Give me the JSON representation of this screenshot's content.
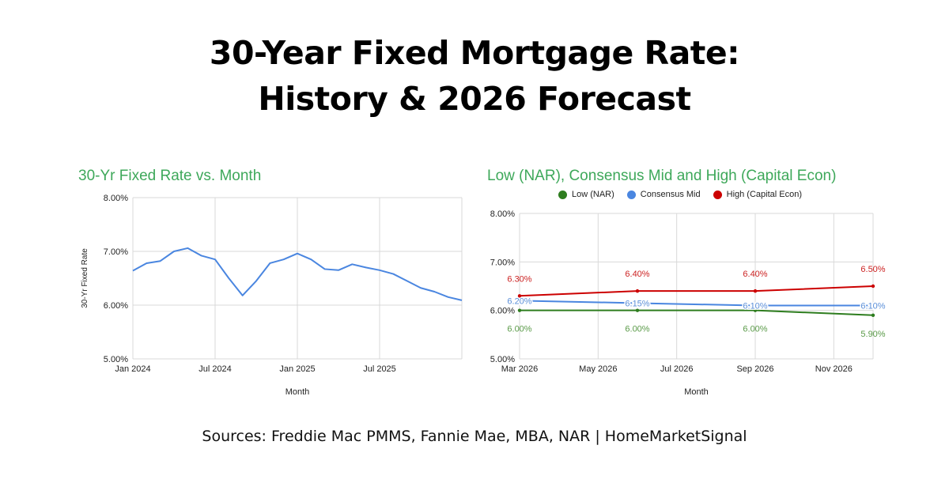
{
  "title_line1": "30-Year Fixed Mortgage Rate:",
  "title_line2": "History & 2026 Forecast",
  "source": "Sources: Freddie Mac PMMS, Fannie Mae, MBA, NAR | HomeMarketSignal",
  "chart_data": [
    {
      "type": "line",
      "title": "30-Yr Fixed Rate vs. Month",
      "xlabel": "Month",
      "ylabel": "30-Yr Fixed Rate",
      "xlim": [
        "2024-01",
        "2026-01"
      ],
      "ylim": [
        5.0,
        8.0
      ],
      "yticks": [
        "5.00%",
        "6.00%",
        "7.00%",
        "8.00%"
      ],
      "xticks": [
        {
          "at": "2024-01",
          "label": "Jan 2024"
        },
        {
          "at": "2024-07",
          "label": "Jul 2024"
        },
        {
          "at": "2025-01",
          "label": "Jan 2025"
        },
        {
          "at": "2025-07",
          "label": "Jul 2025"
        }
      ],
      "grid": true,
      "colors": {
        "line": "#4a86e0",
        "grid": "#d9d9d9"
      },
      "x": [
        "2024-01",
        "2024-02",
        "2024-03",
        "2024-04",
        "2024-05",
        "2024-06",
        "2024-07",
        "2024-08",
        "2024-09",
        "2024-10",
        "2024-11",
        "2024-12",
        "2025-01",
        "2025-02",
        "2025-03",
        "2025-04",
        "2025-05",
        "2025-06",
        "2025-07",
        "2025-08",
        "2025-09",
        "2025-10",
        "2025-11",
        "2025-12",
        "2026-01"
      ],
      "series": [
        {
          "values": [
            6.64,
            6.78,
            6.82,
            7.0,
            7.06,
            6.92,
            6.85,
            6.5,
            6.18,
            6.45,
            6.78,
            6.85,
            6.96,
            6.85,
            6.67,
            6.65,
            6.76,
            6.7,
            6.65,
            6.58,
            6.45,
            6.32,
            6.25,
            6.15,
            6.09
          ]
        }
      ]
    },
    {
      "type": "line",
      "title": "Low (NAR), Consensus Mid and High (Capital Econ)",
      "xlabel": "Month",
      "xlim": [
        "2026-03",
        "2026-12"
      ],
      "ylim": [
        5.0,
        8.0
      ],
      "yticks": [
        "5.00%",
        "6.00%",
        "7.00%",
        "8.00%"
      ],
      "xticks": [
        {
          "at": "2026-03",
          "label": "Mar 2026"
        },
        {
          "at": "2026-05",
          "label": "May 2026"
        },
        {
          "at": "2026-07",
          "label": "Jul 2026"
        },
        {
          "at": "2026-09",
          "label": "Sep 2026"
        },
        {
          "at": "2026-11",
          "label": "Nov 2026"
        }
      ],
      "grid": true,
      "legend": "top",
      "x": [
        "2026-03",
        "2026-06",
        "2026-09",
        "2026-12"
      ],
      "series": [
        {
          "name": "Low (NAR)",
          "color": "#2e7d1f",
          "label_color": "#5a9a48",
          "label_pos": "below",
          "values": [
            6.0,
            6.0,
            6.0,
            5.9
          ],
          "labels": [
            "6.00%",
            "6.00%",
            "6.00%",
            "5.90%"
          ]
        },
        {
          "name": "Consensus Mid",
          "color": "#4a86e0",
          "label_color": "#5b8fd8",
          "label_pos": "on",
          "values": [
            6.2,
            6.15,
            6.1,
            6.1
          ],
          "labels": [
            "6.20%",
            "6.15%",
            "6.10%",
            "6.10%"
          ]
        },
        {
          "name": "High (Capital Econ)",
          "color": "#cc0000",
          "label_color": "#cc2222",
          "label_pos": "above",
          "values": [
            6.3,
            6.4,
            6.4,
            6.5
          ],
          "labels": [
            "6.30%",
            "6.40%",
            "6.40%",
            "6.50%"
          ]
        }
      ]
    }
  ]
}
